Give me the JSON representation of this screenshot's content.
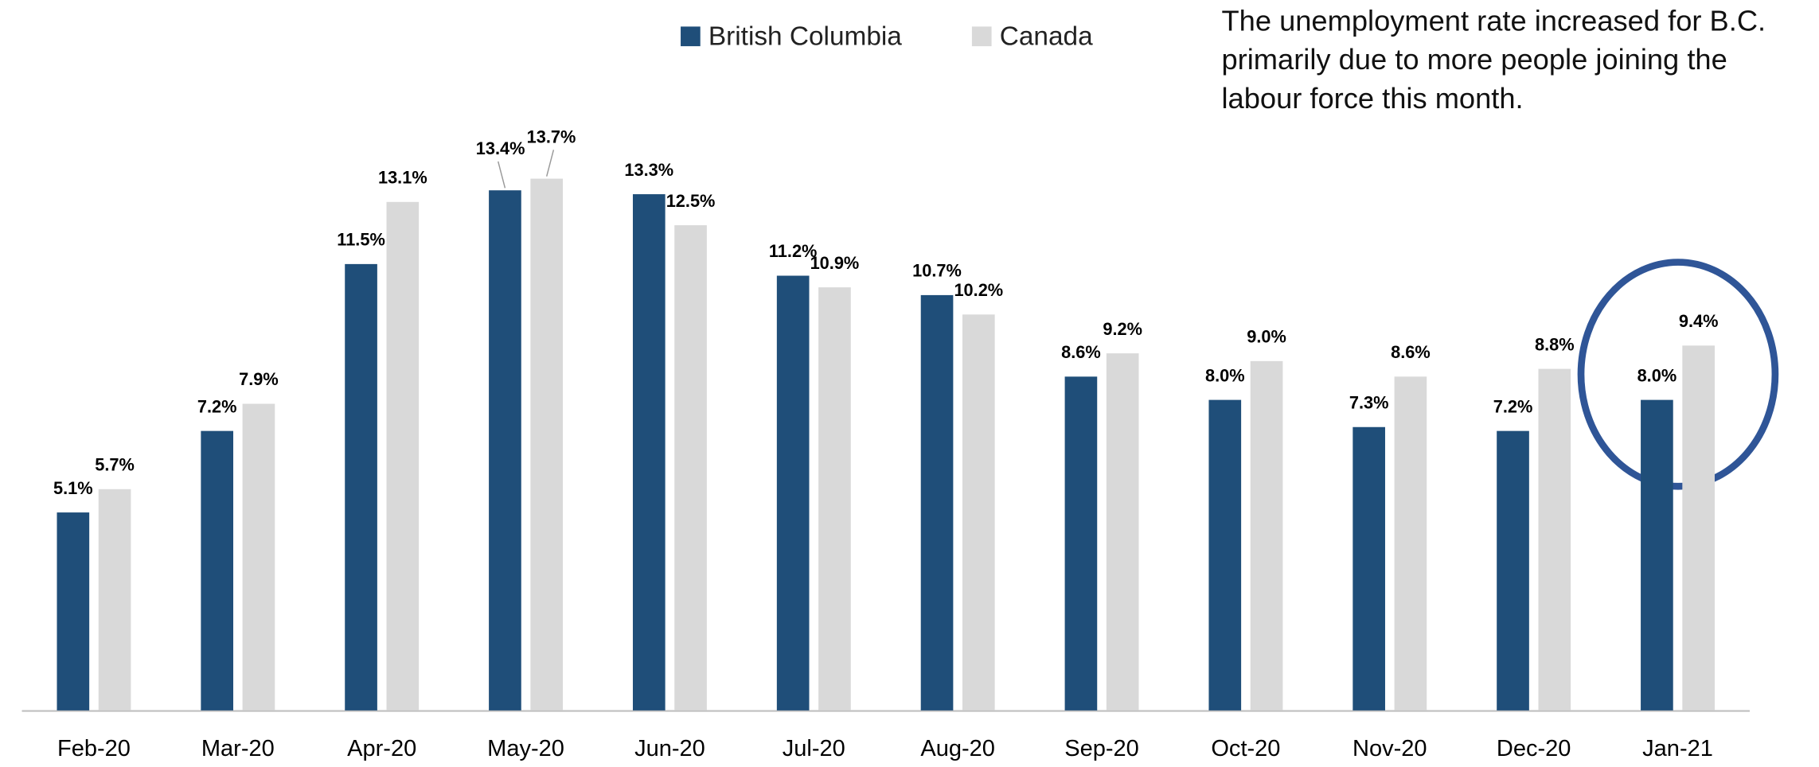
{
  "chart_data": {
    "type": "bar",
    "annotation": [
      "The unemployment rate increased for B.C.",
      "primarily due to more people joining the",
      "labour force this month."
    ],
    "categories": [
      "Feb-20",
      "Mar-20",
      "Apr-20",
      "May-20",
      "Jun-20",
      "Jul-20",
      "Aug-20",
      "Sep-20",
      "Oct-20",
      "Nov-20",
      "Dec-20",
      "Jan-21"
    ],
    "series": [
      {
        "name": "British Columbia",
        "color": "#1f4e79",
        "values": [
          5.1,
          7.2,
          11.5,
          13.4,
          13.3,
          11.2,
          10.7,
          8.6,
          8.0,
          7.3,
          7.2,
          8.0
        ],
        "value_labels": [
          "5.1%",
          "7.2%",
          "11.5%",
          "13.4%",
          "13.3%",
          "11.2%",
          "10.7%",
          "8.6%",
          "8.0%",
          "7.3%",
          "7.2%",
          "8.0%"
        ]
      },
      {
        "name": "Canada",
        "color": "#d9d9d9",
        "values": [
          5.7,
          7.9,
          13.1,
          13.7,
          12.5,
          10.9,
          10.2,
          9.2,
          9.0,
          8.6,
          8.8,
          9.4
        ],
        "value_labels": [
          "5.7%",
          "7.9%",
          "13.1%",
          "13.7%",
          "12.5%",
          "10.9%",
          "10.2%",
          "9.2%",
          "9.0%",
          "8.6%",
          "8.8%",
          "9.4%"
        ]
      }
    ]
  }
}
